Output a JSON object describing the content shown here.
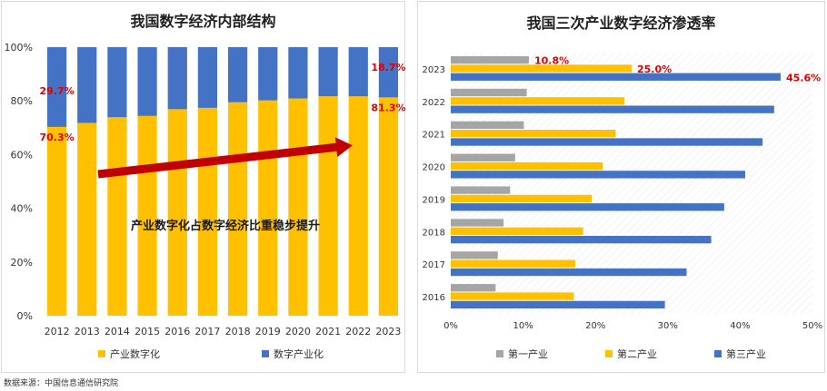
{
  "source_note": "数据来源：中国信息通信研究院",
  "colors": {
    "yellow": "#FFC000",
    "blue": "#4472C4",
    "gray": "#A5A5A5",
    "red_label": "#E00000",
    "arrow": "#C00000",
    "grid": "#d9d9d9"
  },
  "chart_data": [
    {
      "type": "bar",
      "stacked": true,
      "percent": true,
      "title": "我国数字经济内部结构",
      "categories": [
        "2012",
        "2013",
        "2014",
        "2015",
        "2016",
        "2017",
        "2018",
        "2019",
        "2020",
        "2021",
        "2022",
        "2023"
      ],
      "series": [
        {
          "name": "产业数字化",
          "color": "#FFC000",
          "values": [
            70.3,
            71.8,
            73.9,
            74.4,
            76.9,
            77.4,
            79.5,
            80.2,
            80.9,
            81.7,
            81.7,
            81.3
          ]
        },
        {
          "name": "数字产业化",
          "color": "#4472C4",
          "values": [
            29.7,
            28.2,
            26.1,
            25.6,
            23.1,
            22.6,
            20.5,
            19.8,
            19.1,
            18.3,
            18.3,
            18.7
          ]
        }
      ],
      "yticks": [
        "0%",
        "20%",
        "40%",
        "60%",
        "80%",
        "100%"
      ],
      "ylim": [
        0,
        100
      ],
      "data_labels": [
        {
          "category": "2012",
          "series": "数字产业化",
          "text": "29.7%"
        },
        {
          "category": "2012",
          "series": "产业数字化",
          "text": "70.3%"
        },
        {
          "category": "2023",
          "series": "数字产业化",
          "text": "18.7%"
        },
        {
          "category": "2023",
          "series": "产业数字化",
          "text": "81.3%"
        }
      ],
      "annotation": "产业数字化占数字经济比重稳步提升",
      "legend_position": "bottom"
    },
    {
      "type": "bar",
      "orientation": "horizontal",
      "title": "我国三次产业数字经济渗透率",
      "categories": [
        "2016",
        "2017",
        "2018",
        "2019",
        "2020",
        "2021",
        "2022",
        "2023"
      ],
      "series": [
        {
          "name": "第一产业",
          "color": "#A5A5A5",
          "values": [
            6.2,
            6.5,
            7.3,
            8.2,
            8.9,
            10.1,
            10.5,
            10.8
          ]
        },
        {
          "name": "第二产业",
          "color": "#FFC000",
          "values": [
            17.0,
            17.2,
            18.3,
            19.5,
            21.0,
            22.8,
            24.0,
            25.0
          ]
        },
        {
          "name": "第三产业",
          "color": "#4472C4",
          "values": [
            29.6,
            32.6,
            36.0,
            37.8,
            40.7,
            43.1,
            44.7,
            45.6
          ]
        }
      ],
      "xticks": [
        "0%",
        "10%",
        "20%",
        "30%",
        "40%",
        "50%"
      ],
      "xlim": [
        0,
        50
      ],
      "data_labels": [
        {
          "category": "2023",
          "series": "第一产业",
          "text": "10.8%"
        },
        {
          "category": "2023",
          "series": "第二产业",
          "text": "25.0%"
        },
        {
          "category": "2023",
          "series": "第三产业",
          "text": "45.6%"
        }
      ],
      "legend_position": "bottom"
    }
  ]
}
